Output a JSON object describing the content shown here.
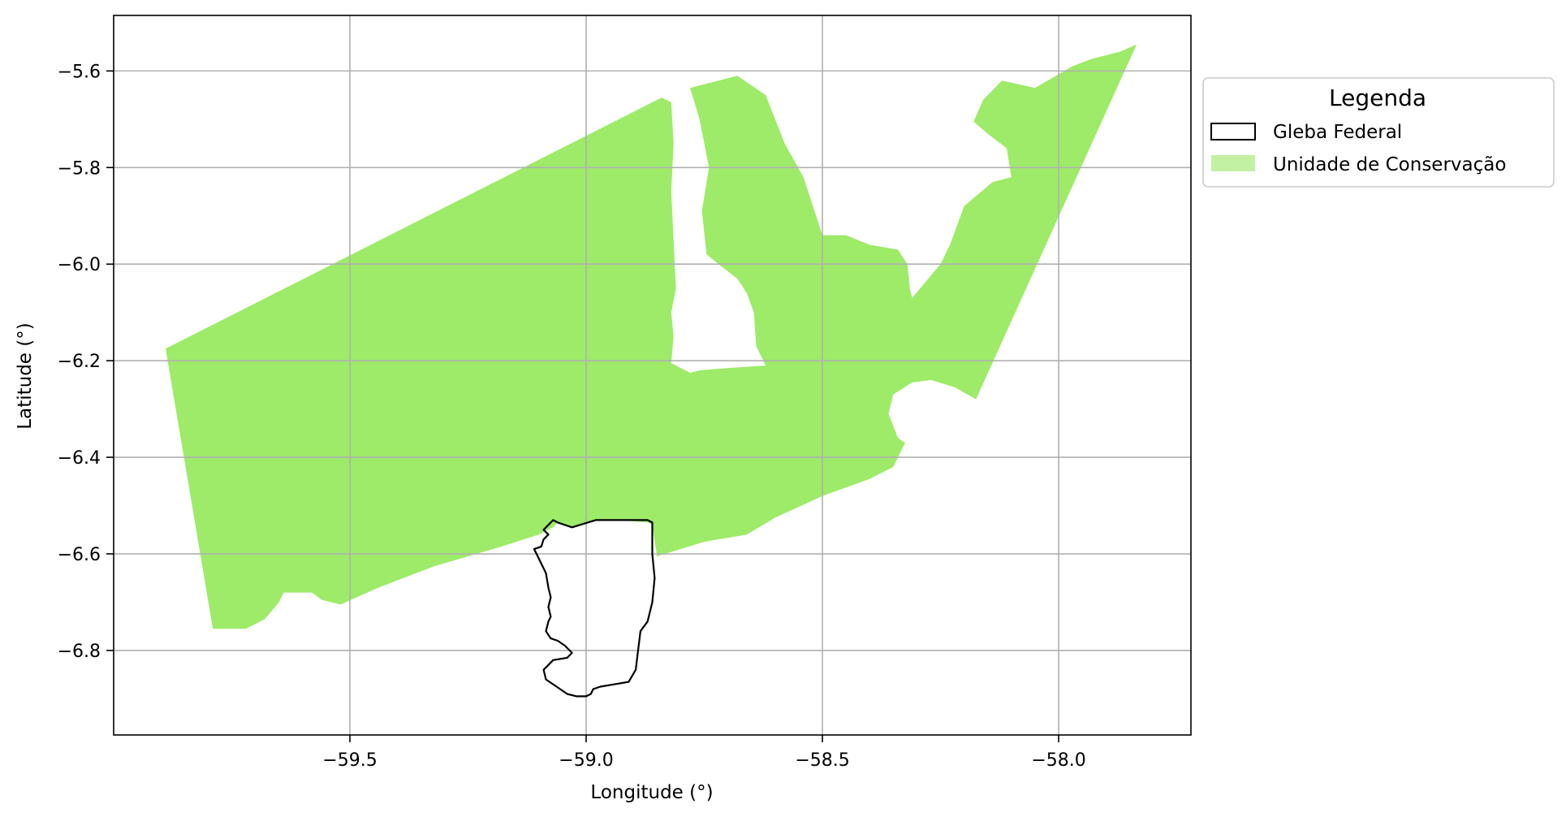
{
  "chart_data": {
    "type": "map",
    "xlabel": "Longitude (°)",
    "ylabel": "Latitude (°)",
    "xlim": [
      -60.0,
      -57.72
    ],
    "ylim": [
      -6.975,
      -5.485
    ],
    "xticks": [
      -59.5,
      -59.0,
      -58.5,
      -58.0
    ],
    "xtick_labels": [
      "−59.5",
      "−59.0",
      "−58.5",
      "−58.0"
    ],
    "yticks": [
      -5.6,
      -5.8,
      -6.0,
      -6.2,
      -6.4,
      -6.6,
      -6.8
    ],
    "ytick_labels": [
      "−5.6",
      "−5.8",
      "−6.0",
      "−6.2",
      "−6.4",
      "−6.6",
      "−6.8"
    ],
    "grid": true,
    "legend": {
      "title": "Legenda",
      "placement": "upper right, outside plot",
      "entries": [
        {
          "label": "Gleba Federal",
          "style": "outline",
          "edge_color": "#000000",
          "fill": "none"
        },
        {
          "label": "Unidade de Conservação",
          "style": "fill",
          "fill": "#9deb68"
        }
      ]
    },
    "layers": [
      {
        "name": "Unidade de Conservação",
        "color": "#9deb68",
        "polygon": [
          [
            -59.89,
            -6.175
          ],
          [
            -58.84,
            -5.655
          ],
          [
            -58.82,
            -5.665
          ],
          [
            -58.815,
            -5.75
          ],
          [
            -58.82,
            -5.85
          ],
          [
            -58.815,
            -5.95
          ],
          [
            -58.81,
            -6.05
          ],
          [
            -58.82,
            -6.1
          ],
          [
            -58.815,
            -6.15
          ],
          [
            -58.82,
            -6.205
          ],
          [
            -58.78,
            -6.225
          ],
          [
            -58.76,
            -6.22
          ],
          [
            -58.7,
            -6.215
          ],
          [
            -58.62,
            -6.21
          ],
          [
            -58.64,
            -6.17
          ],
          [
            -58.645,
            -6.1
          ],
          [
            -58.66,
            -6.06
          ],
          [
            -58.68,
            -6.03
          ],
          [
            -58.72,
            -6.0
          ],
          [
            -58.745,
            -5.98
          ],
          [
            -58.755,
            -5.89
          ],
          [
            -58.74,
            -5.8
          ],
          [
            -58.76,
            -5.7
          ],
          [
            -58.78,
            -5.635
          ],
          [
            -58.68,
            -5.61
          ],
          [
            -58.62,
            -5.65
          ],
          [
            -58.58,
            -5.75
          ],
          [
            -58.54,
            -5.82
          ],
          [
            -58.52,
            -5.88
          ],
          [
            -58.5,
            -5.94
          ],
          [
            -58.45,
            -5.94
          ],
          [
            -58.4,
            -5.96
          ],
          [
            -58.34,
            -5.97
          ],
          [
            -58.32,
            -6.0
          ],
          [
            -58.315,
            -6.05
          ],
          [
            -58.31,
            -6.07
          ],
          [
            -58.25,
            -6.0
          ],
          [
            -58.23,
            -5.96
          ],
          [
            -58.2,
            -5.88
          ],
          [
            -58.14,
            -5.83
          ],
          [
            -58.1,
            -5.82
          ],
          [
            -58.11,
            -5.76
          ],
          [
            -58.15,
            -5.73
          ],
          [
            -58.18,
            -5.705
          ],
          [
            -58.16,
            -5.66
          ],
          [
            -58.12,
            -5.62
          ],
          [
            -58.05,
            -5.635
          ],
          [
            -57.97,
            -5.59
          ],
          [
            -57.93,
            -5.575
          ],
          [
            -57.87,
            -5.56
          ],
          [
            -57.835,
            -5.545
          ],
          [
            -58.175,
            -6.28
          ],
          [
            -58.22,
            -6.255
          ],
          [
            -58.27,
            -6.24
          ],
          [
            -58.31,
            -6.245
          ],
          [
            -58.35,
            -6.27
          ],
          [
            -58.36,
            -6.31
          ],
          [
            -58.34,
            -6.36
          ],
          [
            -58.325,
            -6.37
          ],
          [
            -58.35,
            -6.42
          ],
          [
            -58.4,
            -6.445
          ],
          [
            -58.5,
            -6.48
          ],
          [
            -58.6,
            -6.525
          ],
          [
            -58.66,
            -6.56
          ],
          [
            -58.75,
            -6.575
          ],
          [
            -58.85,
            -6.605
          ],
          [
            -58.86,
            -6.54
          ],
          [
            -58.87,
            -6.535
          ],
          [
            -58.93,
            -6.53
          ],
          [
            -58.98,
            -6.53
          ],
          [
            -59.03,
            -6.545
          ],
          [
            -59.06,
            -6.535
          ],
          [
            -59.07,
            -6.545
          ],
          [
            -59.1,
            -6.56
          ],
          [
            -59.18,
            -6.585
          ],
          [
            -59.32,
            -6.625
          ],
          [
            -59.44,
            -6.67
          ],
          [
            -59.52,
            -6.705
          ],
          [
            -59.56,
            -6.695
          ],
          [
            -59.58,
            -6.68
          ],
          [
            -59.64,
            -6.68
          ],
          [
            -59.65,
            -6.7
          ],
          [
            -59.68,
            -6.735
          ],
          [
            -59.72,
            -6.755
          ],
          [
            -59.79,
            -6.755
          ]
        ]
      },
      {
        "name": "Gleba Federal",
        "color": "#000000",
        "polygon": [
          [
            -59.07,
            -6.53
          ],
          [
            -59.06,
            -6.535
          ],
          [
            -59.03,
            -6.545
          ],
          [
            -58.98,
            -6.53
          ],
          [
            -58.93,
            -6.53
          ],
          [
            -58.87,
            -6.53
          ],
          [
            -58.86,
            -6.535
          ],
          [
            -58.86,
            -6.6
          ],
          [
            -58.855,
            -6.65
          ],
          [
            -58.86,
            -6.7
          ],
          [
            -58.87,
            -6.74
          ],
          [
            -58.885,
            -6.76
          ],
          [
            -58.89,
            -6.8
          ],
          [
            -58.895,
            -6.84
          ],
          [
            -58.91,
            -6.865
          ],
          [
            -58.94,
            -6.87
          ],
          [
            -58.97,
            -6.875
          ],
          [
            -58.985,
            -6.88
          ],
          [
            -58.99,
            -6.89
          ],
          [
            -59.0,
            -6.895
          ],
          [
            -59.02,
            -6.895
          ],
          [
            -59.04,
            -6.89
          ],
          [
            -59.055,
            -6.88
          ],
          [
            -59.085,
            -6.86
          ],
          [
            -59.09,
            -6.84
          ],
          [
            -59.085,
            -6.835
          ],
          [
            -59.08,
            -6.83
          ],
          [
            -59.07,
            -6.82
          ],
          [
            -59.04,
            -6.815
          ],
          [
            -59.03,
            -6.805
          ],
          [
            -59.045,
            -6.79
          ],
          [
            -59.06,
            -6.78
          ],
          [
            -59.075,
            -6.775
          ],
          [
            -59.085,
            -6.76
          ],
          [
            -59.08,
            -6.74
          ],
          [
            -59.075,
            -6.73
          ],
          [
            -59.08,
            -6.71
          ],
          [
            -59.075,
            -6.69
          ],
          [
            -59.08,
            -6.67
          ],
          [
            -59.085,
            -6.64
          ],
          [
            -59.095,
            -6.62
          ],
          [
            -59.105,
            -6.6
          ],
          [
            -59.11,
            -6.59
          ],
          [
            -59.095,
            -6.585
          ],
          [
            -59.09,
            -6.57
          ],
          [
            -59.08,
            -6.56
          ],
          [
            -59.09,
            -6.55
          ],
          [
            -59.08,
            -6.54
          ]
        ]
      }
    ]
  }
}
